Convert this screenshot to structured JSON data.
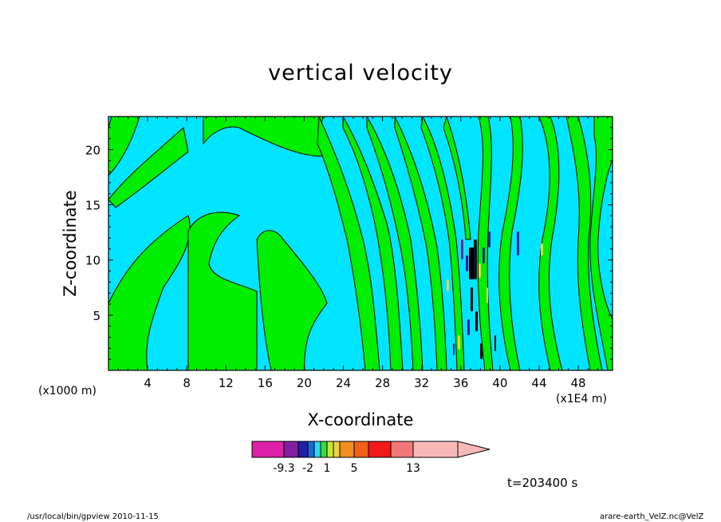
{
  "chart_data": {
    "type": "heatmap",
    "title": "vertical velocity",
    "xlabel": "X-coordinate",
    "ylabel": "Z-coordinate",
    "x_scale_note": "(x1000 m)",
    "x_unit_note": "(x1E4 m)",
    "xlim": [
      0,
      51.5
    ],
    "ylim": [
      0,
      23
    ],
    "x_ticks": [
      4,
      8,
      12,
      16,
      20,
      24,
      28,
      32,
      36,
      40,
      44,
      48
    ],
    "y_ticks": [
      5,
      10,
      15,
      20
    ],
    "levels_shown": [
      -9.3,
      -2,
      1,
      5,
      13
    ],
    "colorbar_colors": [
      "#e020a8",
      "#8020a0",
      "#2020a8",
      "#1a68d8",
      "#30d8f0",
      "#30e040",
      "#c8e830",
      "#f0d040",
      "#f09020",
      "#f06018",
      "#f01818",
      "#f07878",
      "#f8b8b8"
    ],
    "background_colors": {
      "negative": "#00e5ff",
      "positive": "#00ee00"
    },
    "time_label": "t=203400 s"
  },
  "footer": {
    "left": "/usr/local/bin/gpview  2010-11-15",
    "right": "arare-earth_VelZ.nc@VelZ"
  }
}
